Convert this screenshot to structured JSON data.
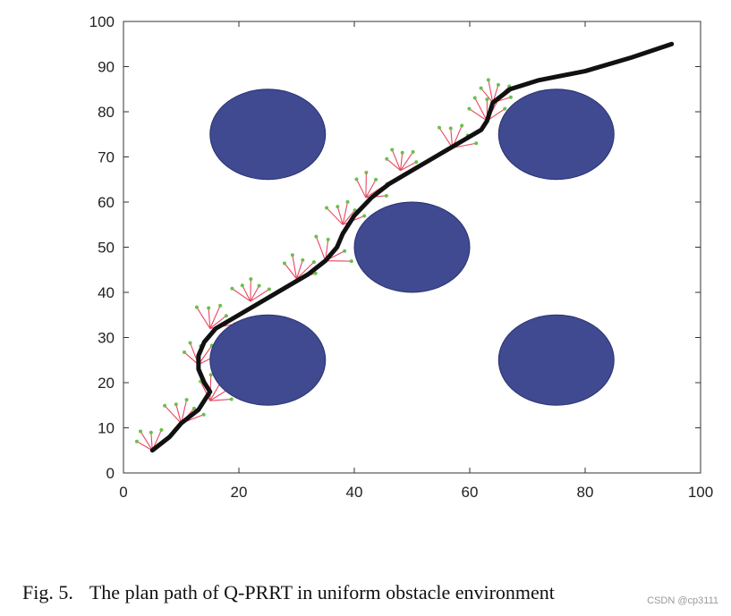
{
  "caption": {
    "figure_number": "Fig. 5.",
    "text": "The plan path of Q-PRRT in uniform obstacle environment"
  },
  "watermark": "CSDN @cp3111",
  "colors": {
    "obstacle_fill": "#3f4a91",
    "obstacle_stroke": "#2b3170",
    "path": "#111111",
    "branch": "#e8475f",
    "node": "#6bbf4a"
  },
  "chart_data": {
    "type": "scatter",
    "title": "",
    "xlabel": "",
    "ylabel": "",
    "xlim": [
      0,
      100
    ],
    "ylim": [
      0,
      100
    ],
    "x_ticks": [
      0,
      20,
      40,
      60,
      80,
      100
    ],
    "y_ticks": [
      0,
      10,
      20,
      30,
      40,
      50,
      60,
      70,
      80,
      90,
      100
    ],
    "x_tick_labels": [
      "0",
      "20",
      "40",
      "60",
      "80",
      "100"
    ],
    "y_tick_labels": [
      "0",
      "10",
      "20",
      "30",
      "40",
      "50",
      "60",
      "70",
      "80",
      "90",
      "100"
    ],
    "grid": false,
    "obstacles": [
      {
        "cx": 25,
        "cy": 75,
        "rx": 10,
        "ry": 10
      },
      {
        "cx": 75,
        "cy": 75,
        "rx": 10,
        "ry": 10
      },
      {
        "cx": 50,
        "cy": 50,
        "rx": 10,
        "ry": 10
      },
      {
        "cx": 25,
        "cy": 25,
        "rx": 10,
        "ry": 10
      },
      {
        "cx": 75,
        "cy": 25,
        "rx": 10,
        "ry": 10
      }
    ],
    "path": [
      [
        5,
        5
      ],
      [
        8,
        8
      ],
      [
        10,
        11
      ],
      [
        13,
        14
      ],
      [
        15,
        18
      ],
      [
        14,
        20
      ],
      [
        13,
        23
      ],
      [
        13,
        26
      ],
      [
        14,
        29
      ],
      [
        16,
        32
      ],
      [
        20,
        35
      ],
      [
        24,
        38
      ],
      [
        28,
        41
      ],
      [
        32,
        44
      ],
      [
        35,
        47
      ],
      [
        37,
        50
      ],
      [
        38,
        53
      ],
      [
        40,
        57
      ],
      [
        43,
        61
      ],
      [
        46,
        64
      ],
      [
        50,
        67
      ],
      [
        54,
        70
      ],
      [
        58,
        73
      ],
      [
        62,
        76
      ],
      [
        63,
        78
      ],
      [
        64,
        82
      ],
      [
        67,
        85
      ],
      [
        72,
        87
      ],
      [
        80,
        89
      ],
      [
        88,
        92
      ],
      [
        95,
        95
      ]
    ],
    "tree_samples": [
      [
        5,
        5
      ],
      [
        10,
        11
      ],
      [
        15,
        16
      ],
      [
        13,
        24
      ],
      [
        15,
        32
      ],
      [
        22,
        38
      ],
      [
        30,
        43
      ],
      [
        35,
        47
      ],
      [
        38,
        55
      ],
      [
        42,
        61
      ],
      [
        48,
        67
      ],
      [
        57,
        72
      ],
      [
        63,
        78
      ],
      [
        64,
        82
      ]
    ]
  }
}
